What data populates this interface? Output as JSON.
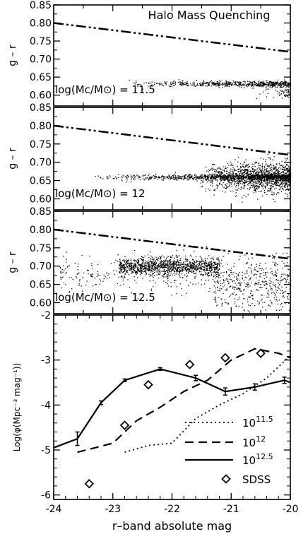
{
  "chart_data": [
    {
      "type": "scatter",
      "title": "Halo Mass Quenching",
      "ylabel": "g – r",
      "annotation": "log(Mc/M⊙) = 11.5",
      "xlim": [
        -24,
        -20
      ],
      "ylim": [
        0.57,
        0.85
      ],
      "yticks": [
        "0.60",
        "0.65",
        "0.70",
        "0.75",
        "0.80",
        "0.85"
      ],
      "divider_line": {
        "x": [
          -24,
          -20
        ],
        "y": [
          0.8,
          0.72
        ]
      },
      "clusters": [
        {
          "x_range": [
            -22.8,
            -20.0
          ],
          "y_center": 0.632,
          "y_spread": 0.004,
          "count": 600,
          "weight": "right"
        },
        {
          "x_range": [
            -20.6,
            -20.0
          ],
          "y_center": 0.61,
          "y_spread": 0.01,
          "count": 60,
          "weight": "right"
        }
      ]
    },
    {
      "type": "scatter",
      "ylabel": "g – r",
      "annotation": "log(Mc/M⊙) = 12",
      "xlim": [
        -24,
        -20
      ],
      "ylim": [
        0.57,
        0.85
      ],
      "yticks": [
        "0.60",
        "0.65",
        "0.70",
        "0.75",
        "0.80",
        "0.85"
      ],
      "divider_line": {
        "x": [
          -24,
          -20
        ],
        "y": [
          0.8,
          0.72
        ]
      },
      "clusters": [
        {
          "x_range": [
            -23.4,
            -20.0
          ],
          "y_center": 0.66,
          "y_spread": 0.004,
          "count": 900,
          "weight": "right"
        },
        {
          "x_range": [
            -21.6,
            -20.0
          ],
          "y_center": 0.66,
          "y_spread": 0.02,
          "count": 1300,
          "weight": "right"
        }
      ]
    },
    {
      "type": "scatter",
      "ylabel": "g – r",
      "annotation": "log(Mc/M⊙) = 12.5",
      "xlim": [
        -24,
        -20
      ],
      "ylim": [
        0.57,
        0.85
      ],
      "yticks": [
        "0.60",
        "0.65",
        "0.70",
        "0.75",
        "0.80",
        "0.85"
      ],
      "divider_line": {
        "x": [
          -24,
          -20
        ],
        "y": [
          0.8,
          0.72
        ]
      },
      "clusters": [
        {
          "x_range": [
            -22.9,
            -21.2
          ],
          "y_center": 0.7,
          "y_spread": 0.012,
          "count": 1100,
          "weight": "none"
        },
        {
          "x_range": [
            -23.9,
            -20.0
          ],
          "y_center": 0.68,
          "y_spread": 0.025,
          "count": 400,
          "weight": "none"
        },
        {
          "x_range": [
            -21.3,
            -20.0
          ],
          "y_center": 0.64,
          "y_spread": 0.035,
          "count": 350,
          "weight": "none"
        }
      ]
    },
    {
      "type": "line",
      "xlabel": "r–band absolute mag",
      "ylabel": "Log(φ(Mpc⁻³ mag⁻¹))",
      "xlim": [
        -24,
        -20
      ],
      "ylim": [
        -6.1,
        -2
      ],
      "xticks": [
        "-24",
        "-23",
        "-22",
        "-21",
        "-20"
      ],
      "yticks": [
        "-6",
        "-5",
        "-4",
        "-3",
        "-2"
      ],
      "series": [
        {
          "name": "10",
          "exponent": "11.5",
          "style": "dotted",
          "x": [
            -22.8,
            -22.4,
            -22.0,
            -21.6,
            -21.2,
            -20.8,
            -20.4,
            -20.0
          ],
          "y": [
            -5.05,
            -4.9,
            -4.85,
            -4.3,
            -4.0,
            -3.75,
            -3.4,
            -2.9
          ]
        },
        {
          "name": "10",
          "exponent": "12",
          "style": "dashed",
          "x": [
            -23.6,
            -23.0,
            -22.6,
            -22.2,
            -21.8,
            -21.4,
            -21.0,
            -20.6,
            -20.2,
            -20.0
          ],
          "y": [
            -5.05,
            -4.85,
            -4.35,
            -4.05,
            -3.7,
            -3.45,
            -3.0,
            -2.75,
            -2.85,
            -2.95
          ]
        },
        {
          "name": "10",
          "exponent": "12.5",
          "style": "solid",
          "x": [
            -24.0,
            -23.6,
            -23.2,
            -22.8,
            -22.2,
            -21.6,
            -21.1,
            -20.6,
            -20.1,
            -20.0
          ],
          "y": [
            -4.95,
            -4.75,
            -3.95,
            -3.45,
            -3.2,
            -3.4,
            -3.7,
            -3.6,
            -3.45,
            -3.5
          ],
          "error_bars": [
            {
              "x": -23.6,
              "y": -4.75,
              "err": 0.15
            },
            {
              "x": -23.2,
              "y": -3.95,
              "err": 0.04
            },
            {
              "x": -22.8,
              "y": -3.45,
              "err": 0.03
            },
            {
              "x": -22.2,
              "y": -3.2,
              "err": 0.03
            },
            {
              "x": -21.6,
              "y": -3.4,
              "err": 0.06
            },
            {
              "x": -21.1,
              "y": -3.7,
              "err": 0.08
            },
            {
              "x": -20.6,
              "y": -3.6,
              "err": 0.07
            },
            {
              "x": -20.1,
              "y": -3.45,
              "err": 0.07
            }
          ]
        }
      ],
      "points": {
        "name": "SDSS",
        "marker": "diamond",
        "x": [
          -23.4,
          -22.8,
          -22.4,
          -21.7,
          -21.1,
          -20.5
        ],
        "y": [
          -5.75,
          -4.45,
          -3.55,
          -3.1,
          -2.95,
          -2.85
        ]
      },
      "legend_position": "bottom-right"
    }
  ]
}
